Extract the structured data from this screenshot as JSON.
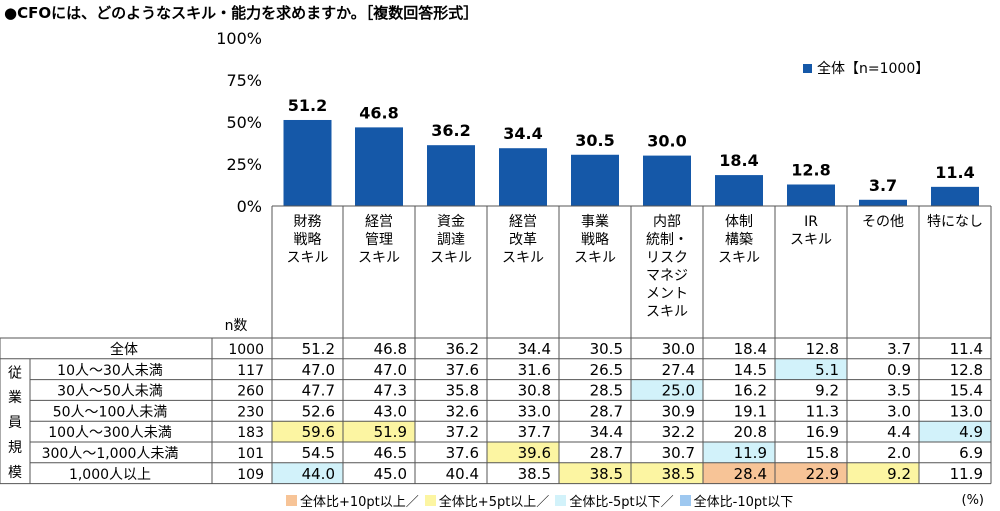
{
  "title": "●CFOには、どのようなスキル・能力を求めますか。［複数回答形式］",
  "colors": {
    "bar": "#1558a8",
    "plus10": "#f7c497",
    "plus5": "#fcf5a2",
    "minus5": "#d2f2fa",
    "minus10": "#9ec8f0",
    "grid": "#bbbbbb"
  },
  "chart_data": {
    "type": "bar",
    "categories": [
      [
        "財務",
        "戦略",
        "スキル"
      ],
      [
        "経営",
        "管理",
        "スキル"
      ],
      [
        "資金",
        "調達",
        "スキル"
      ],
      [
        "経営",
        "改革",
        "スキル"
      ],
      [
        "事業",
        "戦略",
        "スキル"
      ],
      [
        "内部",
        "統制・",
        "リスク",
        "マネジ",
        "メント",
        "スキル"
      ],
      [
        "体制",
        "構築",
        "スキル"
      ],
      [
        "IR",
        "スキル"
      ],
      [
        "その他"
      ],
      [
        "特になし"
      ]
    ],
    "series": [
      {
        "name": "全体【n=1000】",
        "values": [
          51.2,
          46.8,
          36.2,
          34.4,
          30.5,
          30.0,
          18.4,
          12.8,
          3.7,
          11.4
        ]
      }
    ],
    "ylim": [
      0,
      100
    ],
    "yticks": [
      "0%",
      "25%",
      "50%",
      "75%",
      "100%"
    ],
    "legend_position": "top-right",
    "grid": false
  },
  "table": {
    "n_header": "n数",
    "group_label": "従業員規模",
    "rows": [
      {
        "label": "全体",
        "n": "1000",
        "values": [
          "51.2",
          "46.8",
          "36.2",
          "34.4",
          "30.5",
          "30.0",
          "18.4",
          "12.8",
          "3.7",
          "11.4"
        ],
        "hl": [
          0,
          0,
          0,
          0,
          0,
          0,
          0,
          0,
          0,
          0
        ]
      },
      {
        "label": "10人～30人未満",
        "n": "117",
        "values": [
          "47.0",
          "47.0",
          "37.6",
          "31.6",
          "26.5",
          "27.4",
          "14.5",
          "5.1",
          "0.9",
          "12.8"
        ],
        "hl": [
          0,
          0,
          0,
          0,
          0,
          0,
          0,
          3,
          0,
          0
        ]
      },
      {
        "label": "30人～50人未満",
        "n": "260",
        "values": [
          "47.7",
          "47.3",
          "35.8",
          "30.8",
          "28.5",
          "25.0",
          "16.2",
          "9.2",
          "3.5",
          "15.4"
        ],
        "hl": [
          0,
          0,
          0,
          0,
          0,
          3,
          0,
          0,
          0,
          0
        ]
      },
      {
        "label": "50人～100人未満",
        "n": "230",
        "values": [
          "52.6",
          "43.0",
          "32.6",
          "33.0",
          "28.7",
          "30.9",
          "19.1",
          "11.3",
          "3.0",
          "13.0"
        ],
        "hl": [
          0,
          0,
          0,
          0,
          0,
          0,
          0,
          0,
          0,
          0
        ]
      },
      {
        "label": "100人～300人未満",
        "n": "183",
        "values": [
          "59.6",
          "51.9",
          "37.2",
          "37.7",
          "34.4",
          "32.2",
          "20.8",
          "16.9",
          "4.4",
          "4.9"
        ],
        "hl": [
          2,
          2,
          0,
          0,
          0,
          0,
          0,
          0,
          0,
          3
        ]
      },
      {
        "label": "300人～1,000人未満",
        "n": "101",
        "values": [
          "54.5",
          "46.5",
          "37.6",
          "39.6",
          "28.7",
          "30.7",
          "11.9",
          "15.8",
          "2.0",
          "6.9"
        ],
        "hl": [
          0,
          0,
          0,
          2,
          0,
          0,
          3,
          0,
          0,
          0
        ]
      },
      {
        "label": "1,000人以上",
        "n": "109",
        "values": [
          "44.0",
          "45.0",
          "40.4",
          "38.5",
          "38.5",
          "38.5",
          "28.4",
          "22.9",
          "9.2",
          "11.9"
        ],
        "hl": [
          3,
          0,
          0,
          0,
          2,
          2,
          1,
          1,
          2,
          0
        ]
      }
    ]
  },
  "legend": {
    "items": [
      {
        "label": "全体比+10pt以上／",
        "color_key": "plus10"
      },
      {
        "label": "全体比+5pt以上／",
        "color_key": "plus5"
      },
      {
        "label": "全体比-5pt以下／",
        "color_key": "minus5"
      },
      {
        "label": "全体比-10pt以下",
        "color_key": "minus10"
      }
    ],
    "unit": "(%)"
  }
}
